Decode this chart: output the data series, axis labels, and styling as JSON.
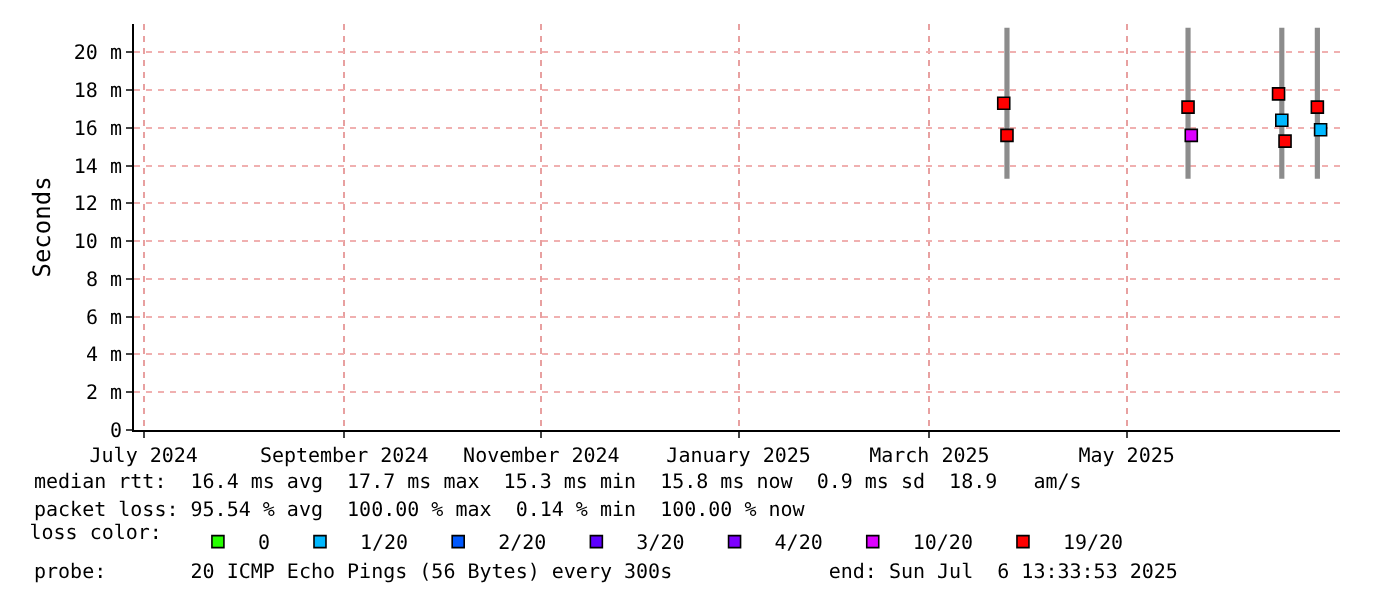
{
  "chart_data": {
    "type": "scatter",
    "ylabel": "Seconds",
    "legend_title": "loss color:",
    "legend": "bottom",
    "grid": true,
    "marker": "square",
    "xlim": [
      "2024-06-28",
      "2025-07-06"
    ],
    "ylim": [
      0,
      21.5
    ],
    "xticks": [
      {
        "value": "2024-07-01",
        "label": "July 2024"
      },
      {
        "value": "2024-09-01",
        "label": "September 2024"
      },
      {
        "value": "2024-11-01",
        "label": "November 2024"
      },
      {
        "value": "2025-01-01",
        "label": "January 2025"
      },
      {
        "value": "2025-03-01",
        "label": "March 2025"
      },
      {
        "value": "2025-05-01",
        "label": "May 2025"
      }
    ],
    "yticks": [
      0,
      {
        "value": 2,
        "label": "2 m"
      },
      {
        "value": 4,
        "label": "4 m"
      },
      {
        "value": 6,
        "label": "6 m"
      },
      {
        "value": 8,
        "label": "8 m"
      },
      {
        "value": 10,
        "label": "10 m"
      },
      {
        "value": 12,
        "label": "12 m"
      },
      {
        "value": 14,
        "label": "14 m"
      },
      {
        "value": 16,
        "label": "16 m"
      },
      {
        "value": 18,
        "label": "18 m"
      },
      {
        "value": 20,
        "label": "20 m"
      }
    ],
    "series": [
      {
        "type": "bar",
        "color": "#8c8c8c",
        "x": [
          "2025-03-25",
          "2025-05-20",
          "2025-06-18",
          "2025-06-29"
        ],
        "base": [
          13.3,
          13.3,
          13.3,
          13.3
        ],
        "values": [
          8,
          8,
          8,
          8
        ]
      },
      {
        "name": "0",
        "color": "#26ff00"
      },
      {
        "name": "1/20",
        "color": "#00b8ff",
        "x": [
          "2025-06-18",
          "2025-06-30"
        ],
        "values": [
          16.4,
          15.9
        ]
      },
      {
        "name": "2/20",
        "color": "#0059ff"
      },
      {
        "name": "3/20",
        "color": "#5e00ff"
      },
      {
        "name": "4/20",
        "color": "#7e00ff"
      },
      {
        "name": "10/20",
        "color": "#dd00ff",
        "x": [
          "2025-05-21"
        ],
        "values": [
          15.6
        ]
      },
      {
        "name": "19/20",
        "color": "#ff0000",
        "x": [
          "2025-03-24",
          "2025-03-25",
          "2025-05-20",
          "2025-06-17",
          "2025-06-19",
          "2025-06-29"
        ],
        "values": [
          17.3,
          15.6,
          17.1,
          17.8,
          15.3,
          17.1
        ]
      }
    ],
    "annotations": [
      "median rtt:  16.4 ms avg  17.7 ms max  15.3 ms min  15.8 ms now  0.9 ms sd  18.9   am/s",
      "packet loss: 95.54 % avg  100.00 % max  0.14 % min  100.00 % now",
      "probe:       20 ICMP Echo Pings (56 Bytes) every 300s             end: Sun Jul  6 13:33:53 2025"
    ]
  }
}
